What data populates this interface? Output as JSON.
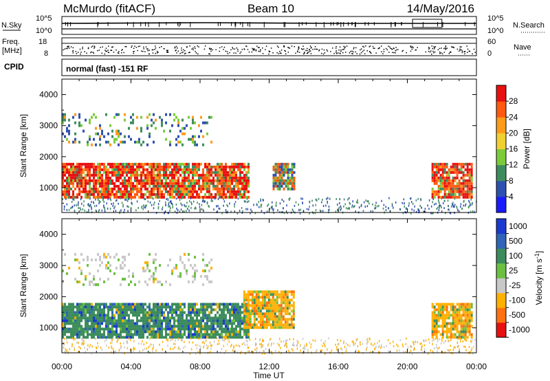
{
  "header": {
    "radar": "McMurdo (fitACF)",
    "beam": "Beam 10",
    "date": "14/May/2016"
  },
  "noise_panel": {
    "left_label": "N.Sky",
    "right_label": "N.Search",
    "left_ticks": [
      "10^5",
      "10^0"
    ],
    "right_ticks": [
      "10^5",
      "10^0"
    ]
  },
  "freq_panel": {
    "left_label_1": "Freq.",
    "left_label_2": "[MHz]",
    "right_label": "Nave",
    "left_ticks": [
      "18",
      "8"
    ],
    "right_ticks": [
      "60",
      "0"
    ]
  },
  "cpid_panel": {
    "label": "CPID",
    "text": "normal (fast) -151 RF"
  },
  "chart_data": [
    {
      "type": "heatmap",
      "parameter": "power",
      "ylabel": "Slant Range [km]",
      "xlabel": "Time UT",
      "ylim": [
        200,
        4500
      ],
      "y_ticks": [
        1000,
        2000,
        3000,
        4000
      ],
      "xlim": [
        "00:00",
        "24:00"
      ],
      "x_ticks": [
        "00:00",
        "04:00",
        "08:00",
        "12:00",
        "16:00",
        "20:00",
        "00:00"
      ],
      "colorbar": {
        "label": "Power [dB]",
        "ticks": [
          4,
          8,
          12,
          16,
          20,
          24,
          28
        ],
        "range": [
          0,
          32
        ],
        "colors": [
          "#1a1aff",
          "#2f4fb0",
          "#3e8c5e",
          "#7ccc3a",
          "#f0d030",
          "#ff9b1a",
          "#ff5a10",
          "#e81010"
        ]
      },
      "echo_regions": [
        {
          "t_start": 0.0,
          "t_end": 10.8,
          "r_min": 700,
          "r_max": 1800,
          "level": "high"
        },
        {
          "t_start": 12.2,
          "t_end": 13.4,
          "r_min": 1000,
          "r_max": 1800,
          "level": "medium"
        },
        {
          "t_start": 21.4,
          "t_end": 23.7,
          "r_min": 700,
          "r_max": 1800,
          "level": "high"
        },
        {
          "t_start": 0.0,
          "t_end": 8.7,
          "r_min": 2400,
          "r_max": 3400,
          "level": "scattered"
        }
      ]
    },
    {
      "type": "heatmap",
      "parameter": "velocity",
      "ylabel": "Slant Range [km]",
      "xlabel": "Time UT",
      "ylim": [
        200,
        4500
      ],
      "y_ticks": [
        1000,
        2000,
        3000,
        4000
      ],
      "xlim": [
        "00:00",
        "24:00"
      ],
      "x_ticks": [
        "00:00",
        "04:00",
        "08:00",
        "12:00",
        "16:00",
        "20:00",
        "00:00"
      ],
      "colorbar": {
        "label": "Velocity [m s",
        "label_sup": "-1",
        "label_close": "]",
        "ticks": [
          "1000",
          "500",
          "100",
          "25",
          "-25",
          "-100",
          "-500",
          "-1000"
        ],
        "colors": [
          "#1a3ad0",
          "#2f64b8",
          "#3c8c5c",
          "#6cc040",
          "#c8c8c8",
          "#ffb000",
          "#ff7010",
          "#e81010"
        ]
      },
      "echo_regions": [
        {
          "t_start": 0.0,
          "t_end": 10.8,
          "r_min": 700,
          "r_max": 1800,
          "velocity": "positive (~100 m/s)"
        },
        {
          "t_start": 10.5,
          "t_end": 13.4,
          "r_min": 1000,
          "r_max": 2200,
          "velocity": "negative (~-100 m/s)"
        },
        {
          "t_start": 21.4,
          "t_end": 23.7,
          "r_min": 700,
          "r_max": 1800,
          "velocity": "negative (~-100 m/s)"
        }
      ]
    }
  ]
}
